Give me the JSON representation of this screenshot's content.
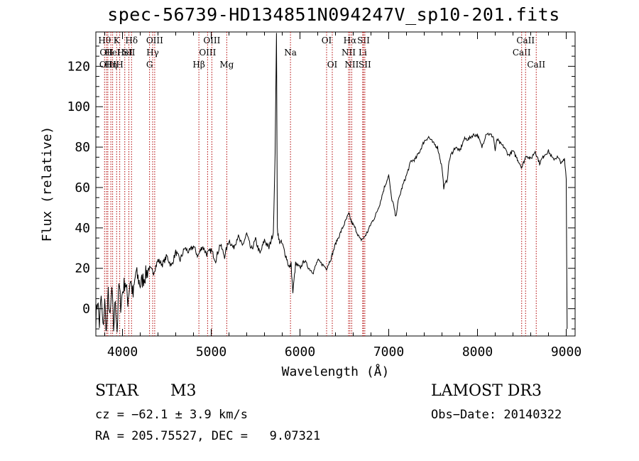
{
  "chart_data": {
    "type": "line",
    "title": "spec-56739-HD134851N094247V_sp10-201.fits",
    "xlabel": "Wavelength (Å)",
    "ylabel": "Flux (relative)",
    "xlim": [
      3700,
      9100
    ],
    "ylim": [
      -13.5,
      137
    ],
    "xticks": [
      4000,
      5000,
      6000,
      7000,
      8000,
      9000
    ],
    "yticks": [
      0,
      20,
      40,
      60,
      80,
      100,
      120
    ],
    "series": [
      {
        "name": "spectrum",
        "x": [
          3700,
          3720,
          3740,
          3760,
          3780,
          3800,
          3820,
          3840,
          3860,
          3880,
          3900,
          3920,
          3940,
          3960,
          3980,
          4000,
          4030,
          4060,
          4090,
          4120,
          4150,
          4200,
          4250,
          4300,
          4350,
          4400,
          4450,
          4500,
          4550,
          4600,
          4650,
          4700,
          4750,
          4800,
          4850,
          4900,
          4950,
          5000,
          5050,
          5100,
          5150,
          5200,
          5250,
          5300,
          5350,
          5400,
          5450,
          5500,
          5550,
          5600,
          5650,
          5700,
          5720,
          5735,
          5740,
          5745,
          5760,
          5800,
          5850,
          5880,
          5900,
          5920,
          5950,
          6000,
          6050,
          6100,
          6150,
          6200,
          6250,
          6300,
          6350,
          6400,
          6450,
          6500,
          6550,
          6580,
          6620,
          6680,
          6720,
          6760,
          6800,
          6850,
          6900,
          6950,
          7000,
          7030,
          7050,
          7080,
          7100,
          7150,
          7200,
          7250,
          7300,
          7350,
          7400,
          7450,
          7500,
          7550,
          7600,
          7620,
          7640,
          7660,
          7680,
          7700,
          7750,
          7800,
          7850,
          7900,
          7950,
          8000,
          8050,
          8100,
          8150,
          8180,
          8200,
          8220,
          8250,
          8300,
          8350,
          8400,
          8450,
          8500,
          8550,
          8600,
          8650,
          8700,
          8750,
          8800,
          8850,
          8900,
          8950,
          8980,
          9000,
          9010
        ],
        "values": [
          -5,
          5,
          -8,
          6,
          -10,
          3,
          -12,
          8,
          -6,
          10,
          -10,
          5,
          -11,
          12,
          2,
          8,
          14,
          4,
          15,
          6,
          18,
          12,
          16,
          20,
          18,
          24,
          22,
          26,
          21,
          28,
          24,
          30,
          28,
          31,
          26,
          31,
          27,
          29,
          24,
          32,
          26,
          34,
          30,
          36,
          31,
          37,
          29,
          34,
          27,
          34,
          30,
          38,
          76,
          140,
          90,
          40,
          34,
          32,
          25,
          20,
          22,
          8,
          22,
          20,
          24,
          20,
          18,
          24,
          22,
          20,
          25,
          32,
          37,
          42,
          47,
          43,
          40,
          34,
          35,
          38,
          42,
          46,
          52,
          60,
          66,
          55,
          52,
          45,
          52,
          60,
          66,
          73,
          74,
          78,
          83,
          85,
          82,
          80,
          70,
          60,
          62,
          64,
          73,
          76,
          80,
          78,
          84,
          84,
          86,
          86,
          80,
          87,
          86,
          85,
          78,
          84,
          82,
          80,
          76,
          78,
          74,
          70,
          76,
          74,
          78,
          72,
          76,
          78,
          74,
          75,
          72,
          74,
          65,
          -10
        ],
        "color": "#000000"
      }
    ],
    "lines": [
      {
        "w": 3798,
        "labels": [
          "Hθ"
        ],
        "row": 0
      },
      {
        "w": 3820,
        "labels": [
          "OII"
        ],
        "row": 1
      },
      {
        "w": 3835,
        "labels": [
          "OIII"
        ],
        "row": 2
      },
      {
        "w": 3869,
        "labels": [
          "Hη"
        ],
        "row": 2
      },
      {
        "w": 3889,
        "labels": [
          "HeI"
        ],
        "row": 1
      },
      {
        "w": 3934,
        "labels": [
          "K"
        ],
        "row": 0
      },
      {
        "w": 3969,
        "labels": [
          "H"
        ],
        "row": 2
      },
      {
        "w": 4026,
        "labels": [
          "HeI"
        ],
        "row": 1
      },
      {
        "w": 4072,
        "labels": [
          "SII"
        ],
        "row": 1
      },
      {
        "w": 4102,
        "labels": [
          "Hδ"
        ],
        "row": 0
      },
      {
        "w": 4305,
        "labels": [
          "G"
        ],
        "row": 2
      },
      {
        "w": 4340,
        "labels": [
          "Hγ"
        ],
        "row": 1
      },
      {
        "w": 4363,
        "labels": [
          "OIII"
        ],
        "row": 0
      },
      {
        "w": 4861,
        "labels": [
          "Hβ"
        ],
        "row": 2
      },
      {
        "w": 4959,
        "labels": [
          "OIII"
        ],
        "row": 1
      },
      {
        "w": 5007,
        "labels": [
          "OIII"
        ],
        "row": 0
      },
      {
        "w": 5175,
        "labels": [
          "Mg"
        ],
        "row": 2
      },
      {
        "w": 5893,
        "labels": [
          "Na"
        ],
        "row": 1
      },
      {
        "w": 6300,
        "labels": [
          "OI"
        ],
        "row": 0
      },
      {
        "w": 6364,
        "labels": [
          "OI"
        ],
        "row": 2
      },
      {
        "w": 6548,
        "labels": [
          "NII"
        ],
        "row": 1
      },
      {
        "w": 6563,
        "labels": [
          "Hα"
        ],
        "row": 0
      },
      {
        "w": 6583,
        "labels": [
          "NII"
        ],
        "row": 2
      },
      {
        "w": 6707,
        "labels": [
          "Li"
        ],
        "row": 1
      },
      {
        "w": 6716,
        "labels": [
          "SII"
        ],
        "row": 0
      },
      {
        "w": 6731,
        "labels": [
          "SII"
        ],
        "row": 2
      },
      {
        "w": 8498,
        "labels": [
          "CaII"
        ],
        "row": 1
      },
      {
        "w": 8542,
        "labels": [
          "CaII"
        ],
        "row": 0
      },
      {
        "w": 8662,
        "labels": [
          "CaII"
        ],
        "row": 2
      }
    ]
  },
  "info": {
    "object_class": "STAR",
    "subclass": "M3",
    "survey": "LAMOST DR3",
    "cz": "cz = −62.1 ± 3.9 km/s",
    "obs_date": "Obs−Date: 20140322",
    "coords": "RA = 205.75527, DEC =   9.07321"
  }
}
